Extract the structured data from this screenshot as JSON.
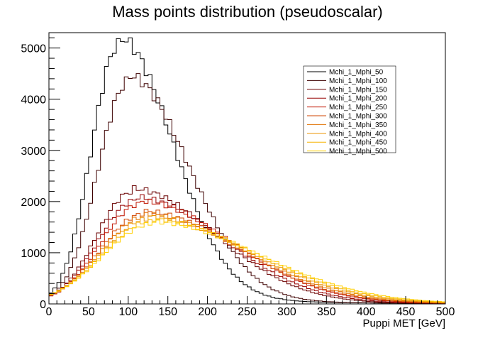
{
  "chart_data": {
    "type": "line",
    "style": "step-histogram",
    "title": "Mass points distribution (pseudoscalar)",
    "xlabel": "Puppi MET [GeV]",
    "ylabel": "",
    "xlim": [
      0,
      500
    ],
    "ylim": [
      0,
      5300
    ],
    "bin_width": 5,
    "xticks": [
      "0",
      "50",
      "100",
      "150",
      "200",
      "250",
      "300",
      "350",
      "400",
      "450",
      "500"
    ],
    "yticks": [
      "0",
      "1000",
      "2000",
      "3000",
      "4000",
      "5000"
    ],
    "grid": false,
    "legend_position": "top-right",
    "series": [
      {
        "name": "Mchi_1_Mphi_50",
        "color": "#000000",
        "peak_x": 88,
        "peak_y": 5060,
        "rise_width": 34,
        "fall_width": 68
      },
      {
        "name": "Mchi_1_Mphi_100",
        "color": "#3d0000",
        "peak_x": 100,
        "peak_y": 4340,
        "rise_width": 38,
        "fall_width": 76
      },
      {
        "name": "Mchi_1_Mphi_150",
        "color": "#6a0000",
        "peak_x": 105,
        "peak_y": 2190,
        "rise_width": 45,
        "fall_width": 105
      },
      {
        "name": "Mchi_1_Mphi_200",
        "color": "#960000",
        "peak_x": 110,
        "peak_y": 2030,
        "rise_width": 48,
        "fall_width": 110
      },
      {
        "name": "Mchi_1_Mphi_250",
        "color": "#c01400",
        "peak_x": 115,
        "peak_y": 1950,
        "rise_width": 50,
        "fall_width": 115
      },
      {
        "name": "Mchi_1_Mphi_300",
        "color": "#d24600",
        "peak_x": 120,
        "peak_y": 1760,
        "rise_width": 55,
        "fall_width": 118
      },
      {
        "name": "Mchi_1_Mphi_350",
        "color": "#e07000",
        "peak_x": 122,
        "peak_y": 1710,
        "rise_width": 56,
        "fall_width": 122
      },
      {
        "name": "Mchi_1_Mphi_400",
        "color": "#ec9400",
        "peak_x": 125,
        "peak_y": 1660,
        "rise_width": 58,
        "fall_width": 126
      },
      {
        "name": "Mchi_1_Mphi_450",
        "color": "#f5b400",
        "peak_x": 128,
        "peak_y": 1610,
        "rise_width": 60,
        "fall_width": 130
      },
      {
        "name": "Mchi_1_Mphi_500",
        "color": "#ffd000",
        "peak_x": 130,
        "peak_y": 1560,
        "rise_width": 62,
        "fall_width": 135
      }
    ]
  }
}
